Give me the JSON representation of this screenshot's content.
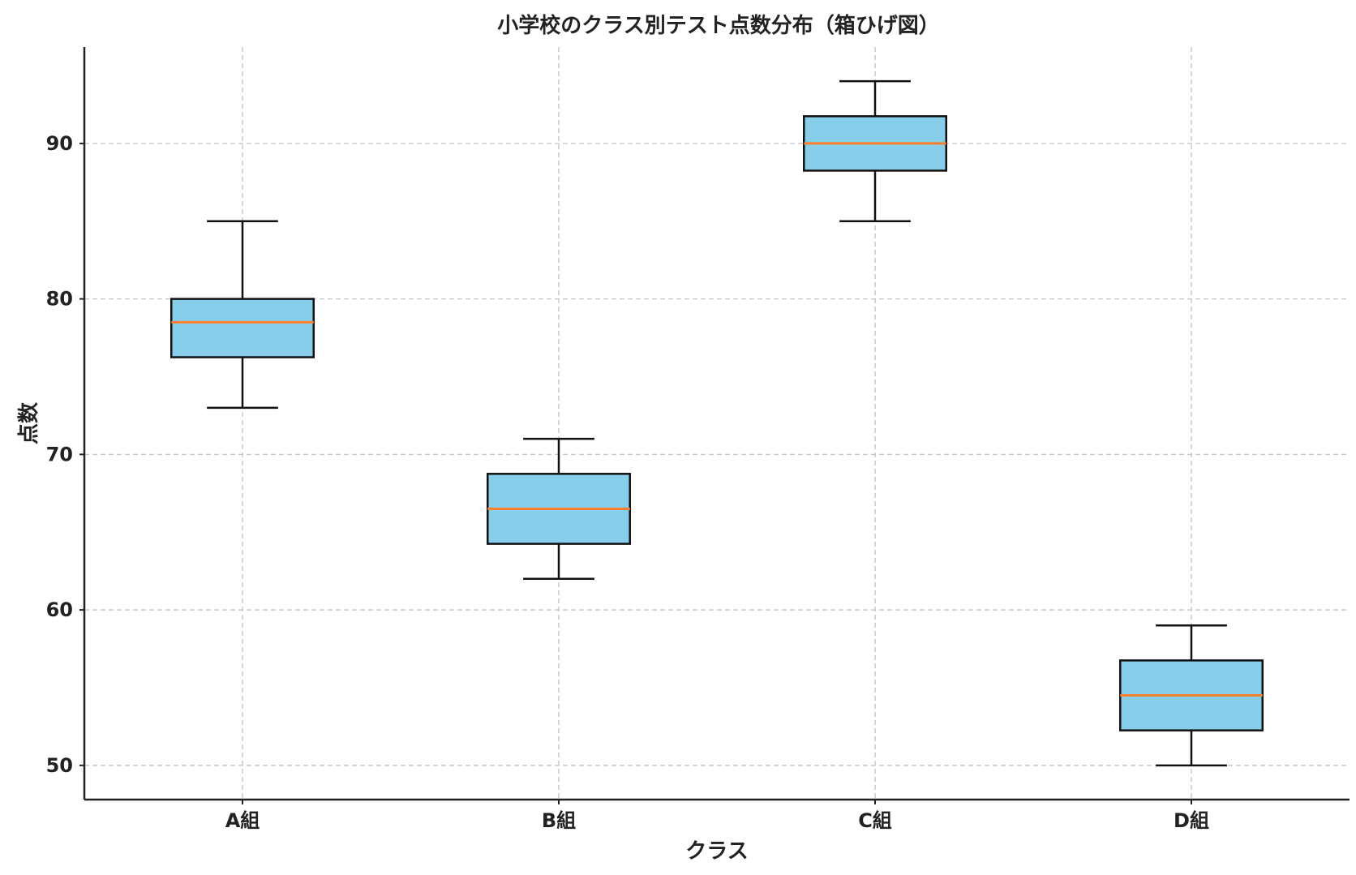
{
  "chart_data": {
    "type": "box",
    "title": "小学校のクラス別テスト点数分布（箱ひげ図）",
    "xlabel": "クラス",
    "ylabel": "点数",
    "categories": [
      "A組",
      "B組",
      "C組",
      "D組"
    ],
    "boxes": [
      {
        "whisker_low": 73,
        "q1": 76.25,
        "median": 78.5,
        "q3": 80,
        "whisker_high": 85
      },
      {
        "whisker_low": 62,
        "q1": 64.25,
        "median": 66.5,
        "q3": 68.75,
        "whisker_high": 71
      },
      {
        "whisker_low": 85,
        "q1": 88.25,
        "median": 90,
        "q3": 91.75,
        "whisker_high": 94
      },
      {
        "whisker_low": 50,
        "q1": 52.25,
        "median": 54.5,
        "q3": 56.75,
        "whisker_high": 59
      }
    ],
    "y_ticks": [
      50,
      60,
      70,
      80,
      90
    ],
    "ylim": [
      47.8,
      96.2
    ],
    "grid": true,
    "colors": {
      "box_fill": "#87ceeb",
      "box_edge": "#111111",
      "median": "#ff7f2a",
      "grid": "#c4c4c4"
    }
  }
}
